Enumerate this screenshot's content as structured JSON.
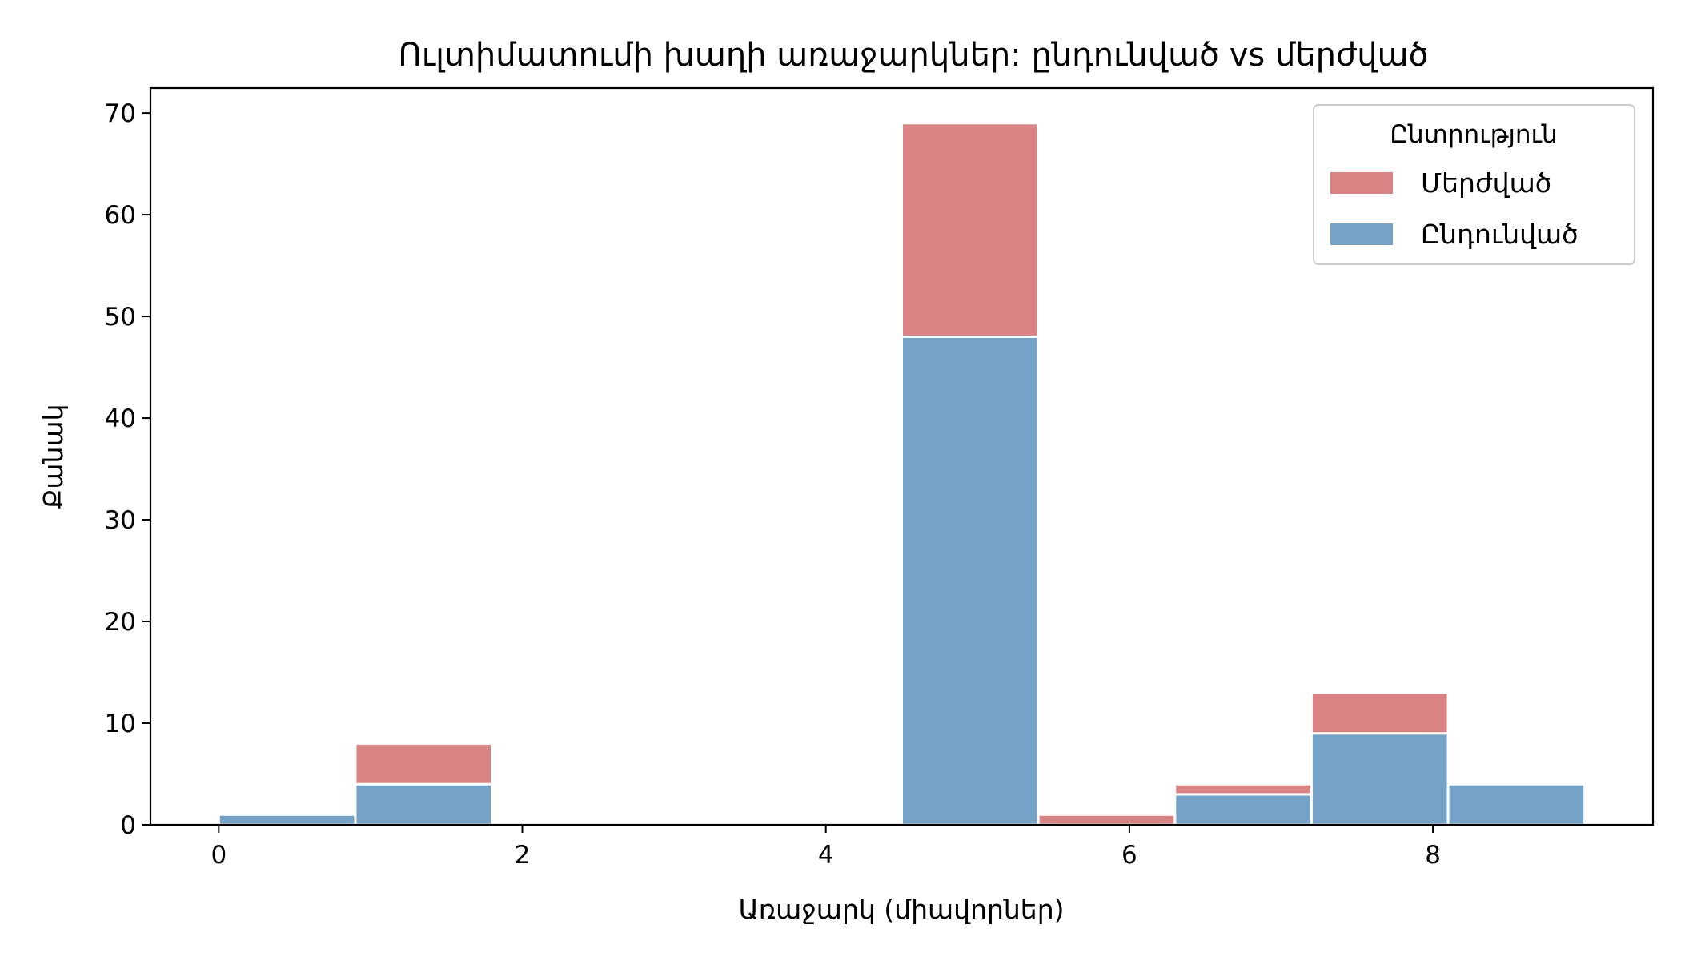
{
  "chart_data": {
    "type": "bar",
    "stacked": true,
    "title": "Ուլտիմատումի խաղի առաջարկներ: ընդունված vs մերժված",
    "xlabel": "Առաջարկ (միավորներ)",
    "ylabel": "Քանակ",
    "xlim": [
      -0.45,
      9.45
    ],
    "ylim": [
      0,
      72.45
    ],
    "x_ticks": [
      0,
      2,
      4,
      6,
      8
    ],
    "y_ticks": [
      0,
      10,
      20,
      30,
      40,
      50,
      60,
      70
    ],
    "bin_edges": [
      0,
      0.9,
      1.8,
      2.7,
      3.6,
      4.5,
      5.4,
      6.3,
      7.2,
      8.1,
      9.0
    ],
    "grid": false,
    "legend": {
      "title": "Ընտրություն",
      "placement": "top-right",
      "entries": [
        "Մերժված",
        "Ընդունված"
      ]
    },
    "series": [
      {
        "name": "Ընդունված",
        "color": "#75a3c7",
        "values": [
          1,
          4,
          0,
          0,
          0,
          48,
          0,
          3,
          9,
          4
        ]
      },
      {
        "name": "Մերժված",
        "color": "#d98384",
        "values": [
          0,
          4,
          0,
          0,
          0,
          21,
          1,
          1,
          4,
          0
        ]
      }
    ]
  }
}
